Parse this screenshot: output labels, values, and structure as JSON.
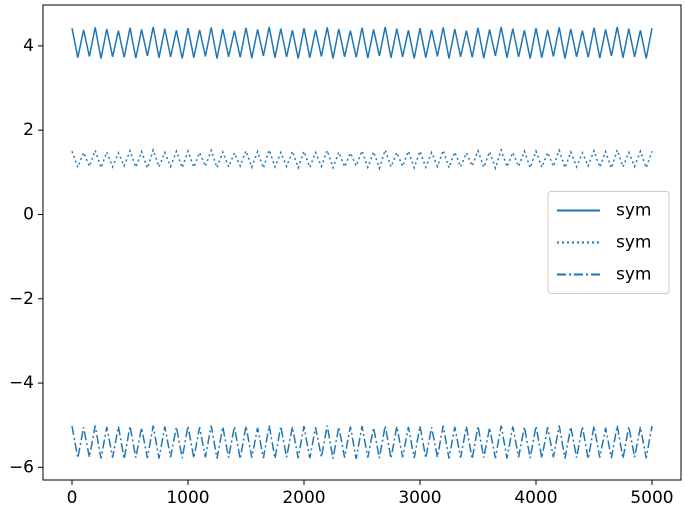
{
  "chart_data": {
    "type": "line",
    "x": [
      0,
      50,
      100,
      150,
      200,
      250,
      300,
      350,
      400,
      450,
      500,
      550,
      600,
      650,
      700,
      750,
      800,
      850,
      900,
      950,
      1000,
      1050,
      1100,
      1150,
      1200,
      1250,
      1300,
      1350,
      1400,
      1450,
      1500,
      1550,
      1600,
      1650,
      1700,
      1750,
      1800,
      1850,
      1900,
      1950,
      2000,
      2050,
      2100,
      2150,
      2200,
      2250,
      2300,
      2350,
      2400,
      2450,
      2500,
      2550,
      2600,
      2650,
      2700,
      2750,
      2800,
      2850,
      2900,
      2950,
      3000,
      3050,
      3100,
      3150,
      3200,
      3250,
      3300,
      3350,
      3400,
      3450,
      3500,
      3550,
      3600,
      3650,
      3700,
      3750,
      3800,
      3850,
      3900,
      3950,
      4000,
      4050,
      4100,
      4150,
      4200,
      4250,
      4300,
      4350,
      4400,
      4450,
      4500,
      4550,
      4600,
      4650,
      4700,
      4750,
      4800,
      4850,
      4900,
      4950,
      5000
    ],
    "series": [
      {
        "name": "sym",
        "color": "#1f77b4",
        "linestyle": "solid",
        "values": [
          4.42,
          3.72,
          4.38,
          3.75,
          4.44,
          3.7,
          4.4,
          3.74,
          4.36,
          3.73,
          4.43,
          3.71,
          4.39,
          3.76,
          4.45,
          3.72,
          4.41,
          3.74,
          4.37,
          3.7,
          4.42,
          3.72,
          4.38,
          3.75,
          4.44,
          3.7,
          4.4,
          3.74,
          4.36,
          3.73,
          4.43,
          3.71,
          4.39,
          3.76,
          4.45,
          3.72,
          4.41,
          3.74,
          4.37,
          3.7,
          4.42,
          3.72,
          4.38,
          3.75,
          4.44,
          3.7,
          4.4,
          3.74,
          4.36,
          3.73,
          4.43,
          3.71,
          4.39,
          3.76,
          4.45,
          3.72,
          4.41,
          3.74,
          4.37,
          3.7,
          4.42,
          3.72,
          4.38,
          3.75,
          4.44,
          3.7,
          4.4,
          3.74,
          4.36,
          3.73,
          4.43,
          3.71,
          4.39,
          3.76,
          4.45,
          3.72,
          4.41,
          3.74,
          4.37,
          3.7,
          4.42,
          3.72,
          4.38,
          3.75,
          4.44,
          3.7,
          4.4,
          3.74,
          4.36,
          3.73,
          4.43,
          3.71,
          4.39,
          3.76,
          4.45,
          3.72,
          4.41,
          3.74,
          4.37,
          3.7,
          4.42
        ]
      },
      {
        "name": "sym",
        "color": "#1f77b4",
        "linestyle": "dotted",
        "values": [
          1.5,
          1.12,
          1.47,
          1.14,
          1.52,
          1.11,
          1.48,
          1.13,
          1.46,
          1.15,
          1.51,
          1.12,
          1.49,
          1.1,
          1.53,
          1.13,
          1.47,
          1.14,
          1.5,
          1.11,
          1.5,
          1.12,
          1.47,
          1.14,
          1.52,
          1.11,
          1.48,
          1.13,
          1.46,
          1.15,
          1.51,
          1.12,
          1.49,
          1.1,
          1.53,
          1.13,
          1.47,
          1.14,
          1.5,
          1.11,
          1.5,
          1.12,
          1.47,
          1.14,
          1.52,
          1.11,
          1.48,
          1.13,
          1.46,
          1.15,
          1.51,
          1.12,
          1.49,
          1.1,
          1.53,
          1.13,
          1.47,
          1.14,
          1.5,
          1.11,
          1.5,
          1.12,
          1.47,
          1.14,
          1.52,
          1.11,
          1.48,
          1.13,
          1.46,
          1.15,
          1.51,
          1.12,
          1.49,
          1.1,
          1.53,
          1.13,
          1.47,
          1.14,
          1.5,
          1.11,
          1.5,
          1.12,
          1.47,
          1.14,
          1.52,
          1.11,
          1.48,
          1.13,
          1.46,
          1.15,
          1.51,
          1.12,
          1.49,
          1.1,
          1.53,
          1.13,
          1.47,
          1.14,
          1.5,
          1.11,
          1.5
        ]
      },
      {
        "name": "sym",
        "color": "#1f77b4",
        "linestyle": "dashdot",
        "values": [
          -5.02,
          -5.78,
          -5.05,
          -5.76,
          -5.01,
          -5.79,
          -5.04,
          -5.77,
          -5.03,
          -5.8,
          -5.02,
          -5.77,
          -5.06,
          -5.78,
          -5.01,
          -5.79,
          -5.03,
          -5.76,
          -5.04,
          -5.78,
          -5.02,
          -5.78,
          -5.05,
          -5.76,
          -5.01,
          -5.79,
          -5.04,
          -5.77,
          -5.03,
          -5.8,
          -5.02,
          -5.77,
          -5.06,
          -5.78,
          -5.01,
          -5.79,
          -5.03,
          -5.76,
          -5.04,
          -5.78,
          -5.02,
          -5.78,
          -5.05,
          -5.76,
          -5.01,
          -5.79,
          -5.04,
          -5.77,
          -5.03,
          -5.8,
          -5.02,
          -5.77,
          -5.06,
          -5.78,
          -5.01,
          -5.79,
          -5.03,
          -5.76,
          -5.04,
          -5.78,
          -5.02,
          -5.78,
          -5.05,
          -5.76,
          -5.01,
          -5.79,
          -5.04,
          -5.77,
          -5.03,
          -5.8,
          -5.02,
          -5.77,
          -5.06,
          -5.78,
          -5.01,
          -5.79,
          -5.03,
          -5.76,
          -5.04,
          -5.78,
          -5.02,
          -5.78,
          -5.05,
          -5.76,
          -5.01,
          -5.79,
          -5.04,
          -5.77,
          -5.03,
          -5.8,
          -5.02,
          -5.77,
          -5.06,
          -5.78,
          -5.01,
          -5.79,
          -5.03,
          -5.76,
          -5.04,
          -5.78,
          -5.02
        ]
      }
    ],
    "xlim": [
      -250,
      5250
    ],
    "ylim": [
      -6.3,
      4.97
    ],
    "xticks": [
      0,
      1000,
      2000,
      3000,
      4000,
      5000
    ],
    "yticks": [
      {
        "value": -6,
        "label": "−6"
      },
      {
        "value": -4,
        "label": "−4"
      },
      {
        "value": -2,
        "label": "−2"
      },
      0,
      2,
      4
    ],
    "legend": "center right"
  }
}
